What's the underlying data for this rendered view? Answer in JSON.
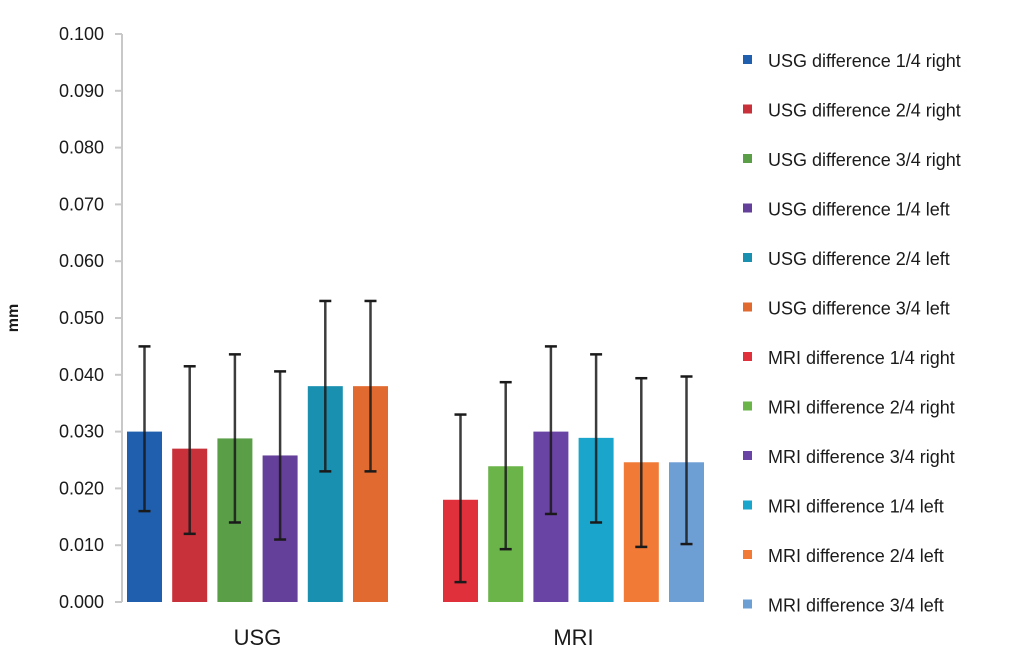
{
  "chart_data": {
    "type": "bar",
    "title": "",
    "xlabel": "",
    "ylabel": "mm",
    "ylim": [
      0,
      0.1
    ],
    "yticks": [
      "0.000",
      "0.010",
      "0.020",
      "0.030",
      "0.040",
      "0.050",
      "0.060",
      "0.070",
      "0.080",
      "0.090",
      "0.100"
    ],
    "grid": false,
    "legend_position": "right",
    "categories": [
      "USG",
      "MRI"
    ],
    "groups": [
      {
        "category": "USG",
        "series": [
          {
            "name": "USG difference 1/4 right",
            "value": 0.03,
            "error_low": 0.016,
            "error_high": 0.045,
            "color": "#1f5fae"
          },
          {
            "name": "USG difference 2/4 right",
            "value": 0.027,
            "error_low": 0.012,
            "error_high": 0.0415,
            "color": "#c8303a"
          },
          {
            "name": "USG difference 3/4 right",
            "value": 0.0288,
            "error_low": 0.014,
            "error_high": 0.0436,
            "color": "#5a9e48"
          },
          {
            "name": "USG difference 1/4 left",
            "value": 0.0258,
            "error_low": 0.011,
            "error_high": 0.0406,
            "color": "#64409a"
          },
          {
            "name": "USG difference 2/4 left",
            "value": 0.038,
            "error_low": 0.023,
            "error_high": 0.053,
            "color": "#1a90b0"
          },
          {
            "name": "USG difference 3/4 left",
            "value": 0.038,
            "error_low": 0.023,
            "error_high": 0.053,
            "color": "#e06a30"
          }
        ]
      },
      {
        "category": "MRI",
        "series": [
          {
            "name": "MRI difference 1/4 right",
            "value": 0.018,
            "error_low": 0.0035,
            "error_high": 0.033,
            "color": "#e0303c"
          },
          {
            "name": "MRI difference 2/4 right",
            "value": 0.0239,
            "error_low": 0.0093,
            "error_high": 0.0387,
            "color": "#6ab44a"
          },
          {
            "name": "MRI difference 3/4 right",
            "value": 0.03,
            "error_low": 0.0155,
            "error_high": 0.045,
            "color": "#6a44a4"
          },
          {
            "name": "MRI difference 1/4 left",
            "value": 0.0289,
            "error_low": 0.014,
            "error_high": 0.0436,
            "color": "#1aa6cc"
          },
          {
            "name": "MRI difference 2/4 left",
            "value": 0.0246,
            "error_low": 0.0097,
            "error_high": 0.0394,
            "color": "#f07a36"
          },
          {
            "name": "MRI difference 3/4 left",
            "value": 0.0246,
            "error_low": 0.0102,
            "error_high": 0.0397,
            "color": "#6e9fd4"
          }
        ]
      }
    ]
  }
}
